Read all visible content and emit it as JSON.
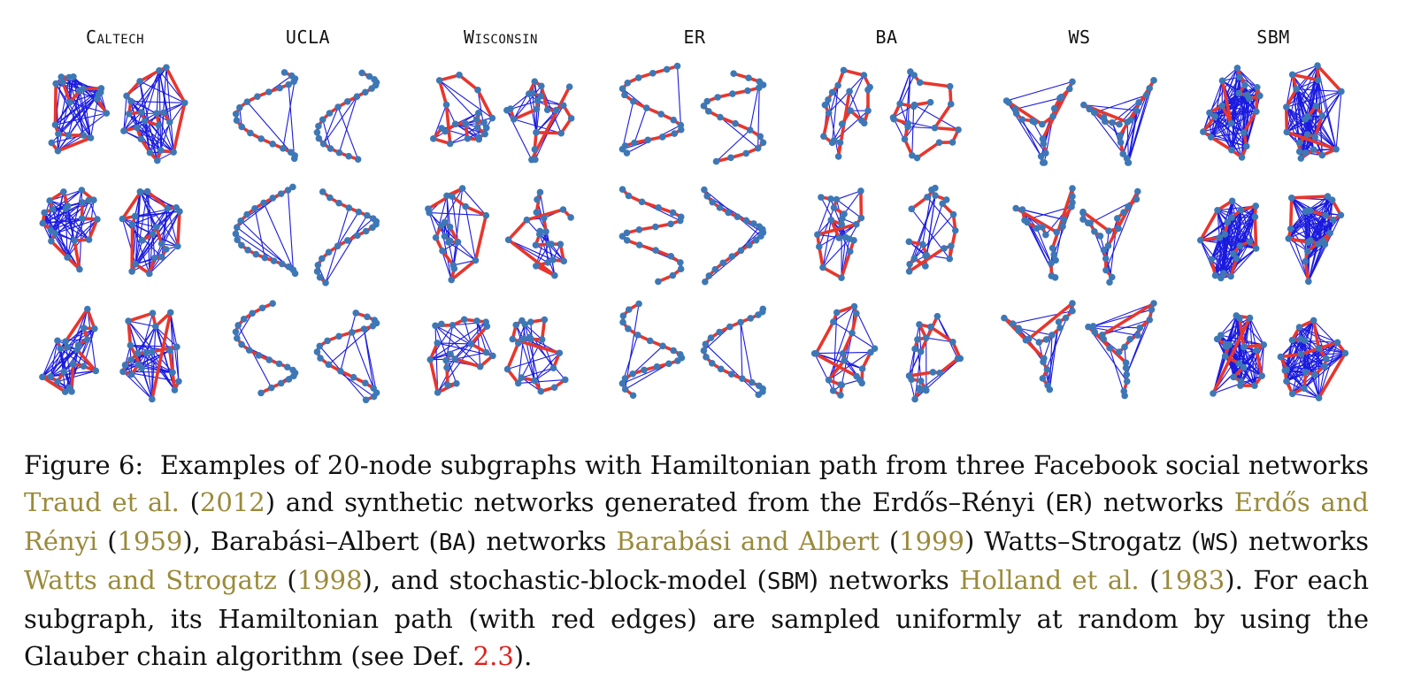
{
  "figure": {
    "columns": [
      "Caltech",
      "UCLA",
      "Wisconsin",
      "ER",
      "BA",
      "WS",
      "SBM"
    ],
    "rows": 3,
    "graphs_per_cell": 2,
    "colors": {
      "node": "#3d78b6",
      "edge": "#1a1adf",
      "hamiltonian_edge": "#e8362c"
    }
  },
  "caption": {
    "label": "Figure 6:",
    "t1": "Examples of 20-node subgraphs with Hamiltonian path from three Facebook social networks",
    "c1": "Traud et al.",
    "y1": "2012",
    "t2": "and synthetic networks generated from the Erdős–Rényi (",
    "m1": "ER",
    "t3": ") networks",
    "c2": "Erdős and Rényi",
    "y2": "1959",
    "t4": "), Barabási–Albert (",
    "m2": "BA",
    "t5": ") networks",
    "c3": "Barabási and Albert",
    "y3": "1999",
    "t6": "Watts–Strogatz (",
    "m3": "WS",
    "t7": ") networks",
    "c4": "Watts and Strogatz",
    "y4": "1998",
    "t8": "), and stochastic-block-model (",
    "m4": "SBM",
    "t9": ") networks",
    "c5": "Holland et al.",
    "y5": "1983",
    "t10": "). For each subgraph, its Hamiltonian path (with red edges) are sampled uniformly at random by using the Glauber chain algorithm (see Def.",
    "ref": "2.3",
    "t11": ")."
  }
}
